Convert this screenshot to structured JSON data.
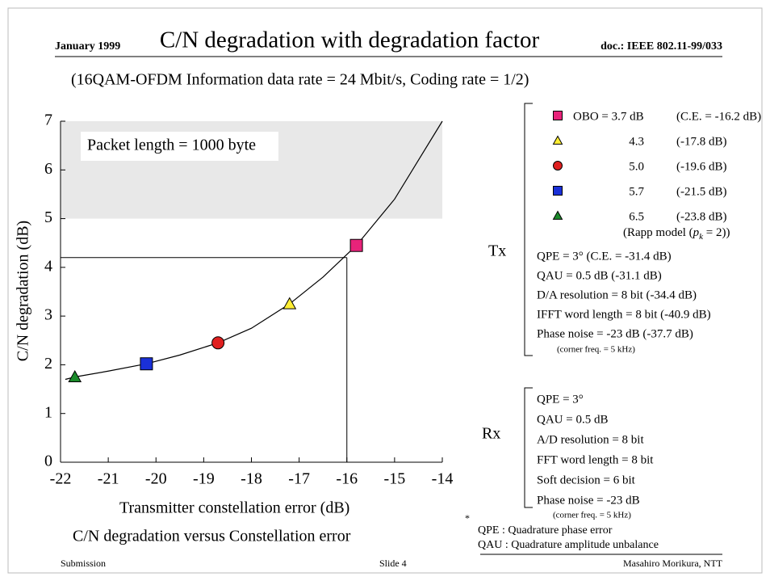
{
  "header": {
    "date": "January 1999",
    "title": "C/N degradation with degradation factor",
    "doc": "doc.: IEEE 802.11-99/033",
    "subtitle": "(16QAM-OFDM Information data rate = 24 Mbit/s, Coding rate = 1/2)"
  },
  "chart_data": {
    "type": "scatter",
    "annotation": "Packet length = 1000 byte",
    "x_label": "Transmitter constellation error (dB)",
    "y_label": "C/N degradation (dB)",
    "caption": "C/N degradation versus Constellation error",
    "xlim": [
      -22,
      -14
    ],
    "xticks": [
      -22,
      -21,
      -20,
      -19,
      -18,
      -17,
      -16,
      -15,
      -14
    ],
    "ylim": [
      0,
      7
    ],
    "yticks": [
      0,
      1,
      2,
      3,
      4,
      5,
      6,
      7
    ],
    "shaded_region": [
      5,
      7
    ],
    "reference": {
      "x": -16,
      "y": 4.2
    },
    "curve": {
      "x": [
        -21.9,
        -21.7,
        -21,
        -20.2,
        -19.5,
        -18.7,
        -18,
        -17.2,
        -16.5,
        -15.8,
        -15,
        -14.5,
        -14
      ],
      "values": [
        1.7,
        1.75,
        1.87,
        2.02,
        2.2,
        2.45,
        2.75,
        3.25,
        3.8,
        4.45,
        5.4,
        6.2,
        7
      ]
    },
    "series": [
      {
        "name": "OBO = 3.7 dB",
        "ce": "(C.E. = -16.2 dB)",
        "marker": "square",
        "color": "#e8237a",
        "x": [
          -15.8
        ],
        "values": [
          4.45
        ]
      },
      {
        "name": "4.3",
        "ce": "(-17.8 dB)",
        "marker": "triangle",
        "color": "#ffee33",
        "x": [
          -17.2
        ],
        "values": [
          3.25
        ]
      },
      {
        "name": "5.0",
        "ce": "(-19.6 dB)",
        "marker": "circle",
        "color": "#e02020",
        "x": [
          -18.7
        ],
        "values": [
          2.45
        ]
      },
      {
        "name": "5.7",
        "ce": "(-21.5 dB)",
        "marker": "square",
        "color": "#1a30d8",
        "x": [
          -20.2
        ],
        "values": [
          2.02
        ]
      },
      {
        "name": "6.5",
        "ce": "(-23.8 dB)",
        "marker": "triangle",
        "color": "#1a8a2a",
        "x": [
          -21.7
        ],
        "values": [
          1.75
        ]
      }
    ]
  },
  "tx": {
    "label": "Tx",
    "model": [
      "(Rapp model (",
      "p",
      "k",
      " = 2))"
    ],
    "lines": [
      "QPE = 3° (C.E. = -31.4 dB)",
      "QAU = 0.5 dB (-31.1 dB)",
      "D/A resolution = 8 bit (-34.4 dB)",
      "IFFT word length = 8 bit (-40.9 dB)",
      "Phase noise = -23 dB (-37.7 dB)"
    ],
    "note": "(corner freq. = 5 kHz)"
  },
  "rx": {
    "label": "Rx",
    "lines": [
      "QPE = 3°",
      "QAU = 0.5 dB",
      "A/D resolution = 8 bit",
      "FFT word length = 8 bit",
      "Soft decision = 6 bit",
      "Phase noise = -23 dB"
    ],
    "note": "(corner freq. = 5 kHz)"
  },
  "footnote": {
    "mark": "*",
    "lines": [
      "QPE : Quadrature phase error",
      "QAU : Quadrature amplitude unbalance"
    ]
  },
  "footer": {
    "left": "Submission",
    "center": "Slide 4",
    "right": "Masahiro Morikura, NTT"
  }
}
